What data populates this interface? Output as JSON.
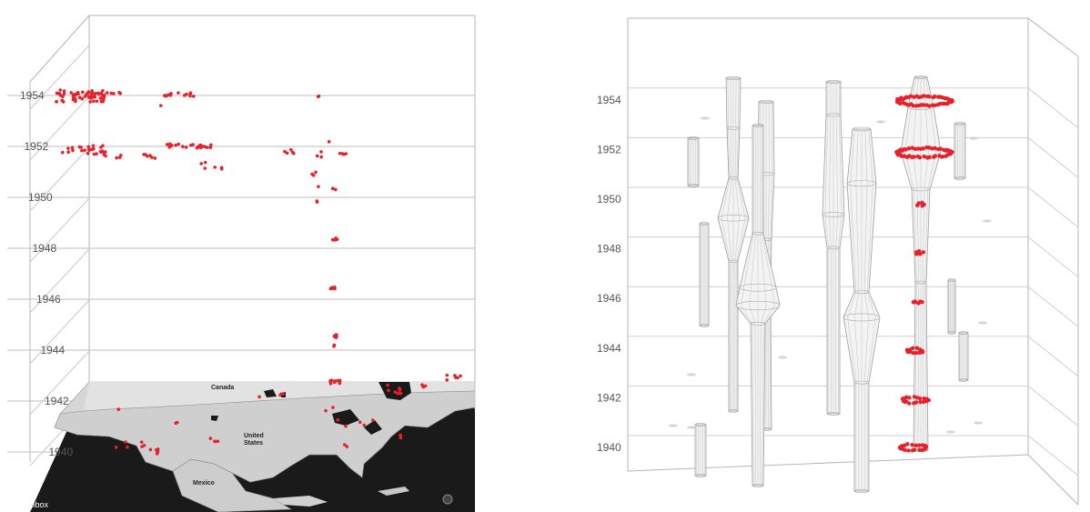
{
  "chart_data": [
    {
      "type": "scatter",
      "panel": "left",
      "base": "map of North America",
      "y_axis_ticks": [
        "1954",
        "1952",
        "1950",
        "1948",
        "1946",
        "1944",
        "1942",
        "1940"
      ],
      "ylim": [
        1939,
        1955
      ],
      "map_labels": {
        "canada": "Canada",
        "us_line1": "United",
        "us_line2": "States",
        "mexico": "Mexico",
        "attribution": "mapbox"
      },
      "point_color": "#e8202a",
      "grid": true
    },
    {
      "type": "scatter",
      "panel": "right",
      "base": "space-time cylinders",
      "y_axis_ticks": [
        "1954",
        "1952",
        "1950",
        "1948",
        "1946",
        "1944",
        "1942",
        "1940"
      ],
      "ylim": [
        1939,
        1955
      ],
      "point_color": "#e8202a",
      "cylinder_color": "#b0b0b0",
      "grid": true
    }
  ]
}
